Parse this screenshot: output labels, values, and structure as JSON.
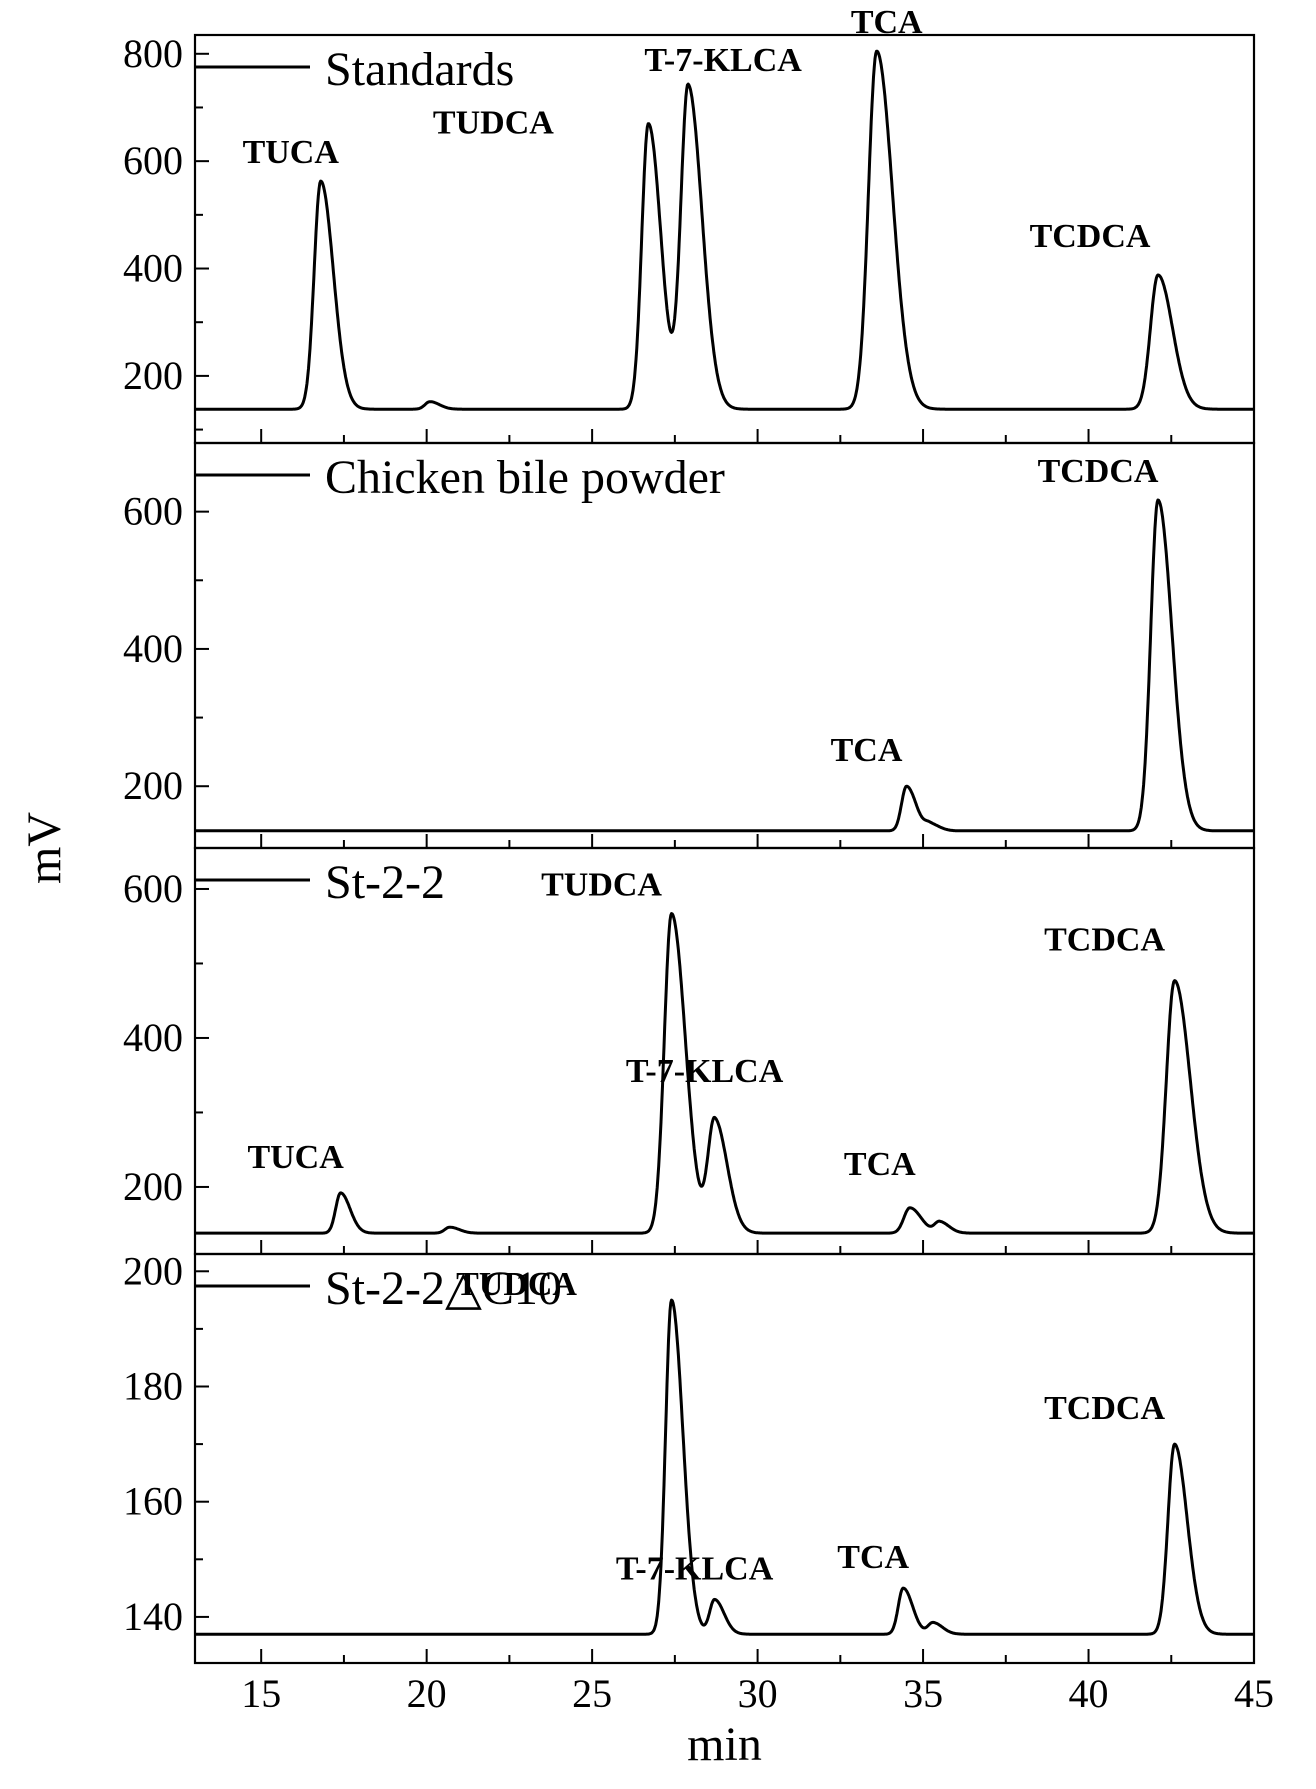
{
  "chart_data": {
    "type": "line",
    "xlabel": "min",
    "ylabel": "mV",
    "xlim": [
      13,
      45
    ],
    "x_ticks": [
      15,
      20,
      25,
      30,
      35,
      40,
      45
    ],
    "shared_x_axis": true,
    "panels": [
      {
        "name": "Standards",
        "ylim": [
          75,
          835
        ],
        "y_ticks": [
          200,
          400,
          600,
          800
        ],
        "baseline": 138,
        "peaks": [
          {
            "label": "TUCA",
            "x": 16.8,
            "y": 563,
            "width": 0.2
          },
          {
            "label": "",
            "x": 20.1,
            "y": 152,
            "width": 0.15
          },
          {
            "label": "TUDCA",
            "x": 26.7,
            "y": 670,
            "width": 0.2
          },
          {
            "label": "T-7-KLCA",
            "x": 27.9,
            "y": 740,
            "width": 0.22
          },
          {
            "label": "TCA",
            "x": 33.6,
            "y": 805,
            "width": 0.25
          },
          {
            "label": "TCDCA",
            "x": 42.1,
            "y": 388,
            "width": 0.23
          }
        ]
      },
      {
        "name": "Chicken bile powder",
        "ylim": [
          110,
          700
        ],
        "y_ticks": [
          200,
          400,
          600
        ],
        "baseline": 135,
        "peaks": [
          {
            "label": "TCA",
            "x": 34.5,
            "y": 200,
            "width": 0.15
          },
          {
            "label": "",
            "x": 35.2,
            "y": 145,
            "width": 0.15
          },
          {
            "label": "TCDCA",
            "x": 42.1,
            "y": 617,
            "width": 0.22
          }
        ]
      },
      {
        "name": "St-2-2",
        "ylim": [
          110,
          655
        ],
        "y_ticks": [
          200,
          400,
          600
        ],
        "baseline": 138,
        "peaks": [
          {
            "label": "TUCA",
            "x": 17.4,
            "y": 192,
            "width": 0.15
          },
          {
            "label": "",
            "x": 20.7,
            "y": 146,
            "width": 0.15
          },
          {
            "label": "TUDCA",
            "x": 27.4,
            "y": 567,
            "width": 0.22
          },
          {
            "label": "T-7-KLCA",
            "x": 28.7,
            "y": 290,
            "width": 0.2
          },
          {
            "label": "TCA",
            "x": 34.6,
            "y": 172,
            "width": 0.18
          },
          {
            "label": "",
            "x": 35.5,
            "y": 153,
            "width": 0.15
          },
          {
            "label": "TCDCA",
            "x": 42.6,
            "y": 477,
            "width": 0.25
          }
        ]
      },
      {
        "name": "St-2-2△C10",
        "ylim": [
          132,
          203
        ],
        "y_ticks": [
          140,
          160,
          180,
          200
        ],
        "baseline": 137,
        "peaks": [
          {
            "label": "TUDCA",
            "x": 27.4,
            "y": 195,
            "width": 0.18
          },
          {
            "label": "T-7-KLCA",
            "x": 28.7,
            "y": 143,
            "width": 0.15
          },
          {
            "label": "TCA",
            "x": 34.4,
            "y": 145,
            "width": 0.15
          },
          {
            "label": "",
            "x": 35.3,
            "y": 139,
            "width": 0.15
          },
          {
            "label": "TCDCA",
            "x": 42.6,
            "y": 170,
            "width": 0.2
          }
        ]
      }
    ]
  }
}
